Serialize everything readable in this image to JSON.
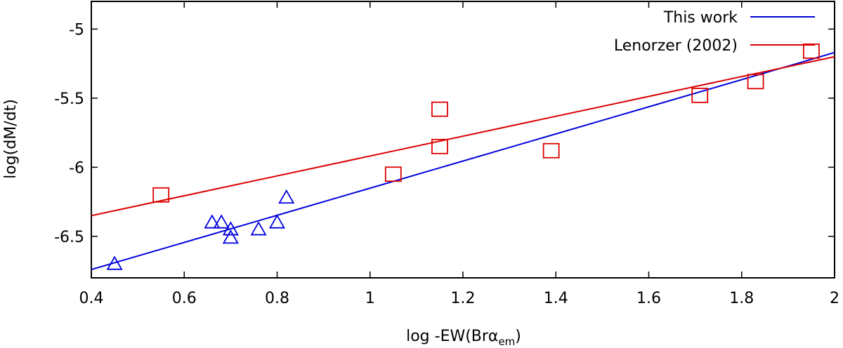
{
  "chart_data": {
    "type": "scatter",
    "xlabel_main": "log -EW(Brα",
    "xlabel_sub": "em",
    "xlabel_close": ")",
    "ylabel": "log(dM/dt)",
    "xlim": [
      0.4,
      2.0
    ],
    "ylim": [
      -6.8,
      -4.8
    ],
    "xticks": [
      0.4,
      0.6,
      0.8,
      1.0,
      1.2,
      1.4,
      1.6,
      1.8,
      2.0
    ],
    "xtick_labels": [
      "0.4",
      "0.6",
      "0.8",
      "1",
      "1.2",
      "1.4",
      "1.6",
      "1.8",
      "2"
    ],
    "yticks": [
      -6.5,
      -6.0,
      -5.5,
      -5.0
    ],
    "ytick_labels": [
      "-6.5",
      "-6",
      "-5.5",
      "-5"
    ],
    "grid": false,
    "legend_position": "top-right",
    "series": [
      {
        "name": "This work",
        "color": "#0000dd",
        "marker": "triangle",
        "points": [
          {
            "x": 0.45,
            "y": -6.7
          },
          {
            "x": 0.66,
            "y": -6.4
          },
          {
            "x": 0.68,
            "y": -6.4
          },
          {
            "x": 0.7,
            "y": -6.45
          },
          {
            "x": 0.7,
            "y": -6.51
          },
          {
            "x": 0.76,
            "y": -6.45
          },
          {
            "x": 0.8,
            "y": -6.4
          },
          {
            "x": 0.82,
            "y": -6.22
          }
        ],
        "fit_line": {
          "x": [
            0.4,
            2.0
          ],
          "y": [
            -6.74,
            -5.17
          ]
        }
      },
      {
        "name": "Lenorzer (2002)",
        "color": "#dd0000",
        "marker": "square",
        "points": [
          {
            "x": 0.55,
            "y": -6.2
          },
          {
            "x": 1.05,
            "y": -6.05
          },
          {
            "x": 1.15,
            "y": -5.58
          },
          {
            "x": 1.15,
            "y": -5.85
          },
          {
            "x": 1.39,
            "y": -5.88
          },
          {
            "x": 1.71,
            "y": -5.48
          },
          {
            "x": 1.83,
            "y": -5.38
          },
          {
            "x": 1.95,
            "y": -5.16
          }
        ],
        "fit_line": {
          "x": [
            0.4,
            2.0
          ],
          "y": [
            -6.35,
            -5.2
          ]
        }
      }
    ]
  }
}
